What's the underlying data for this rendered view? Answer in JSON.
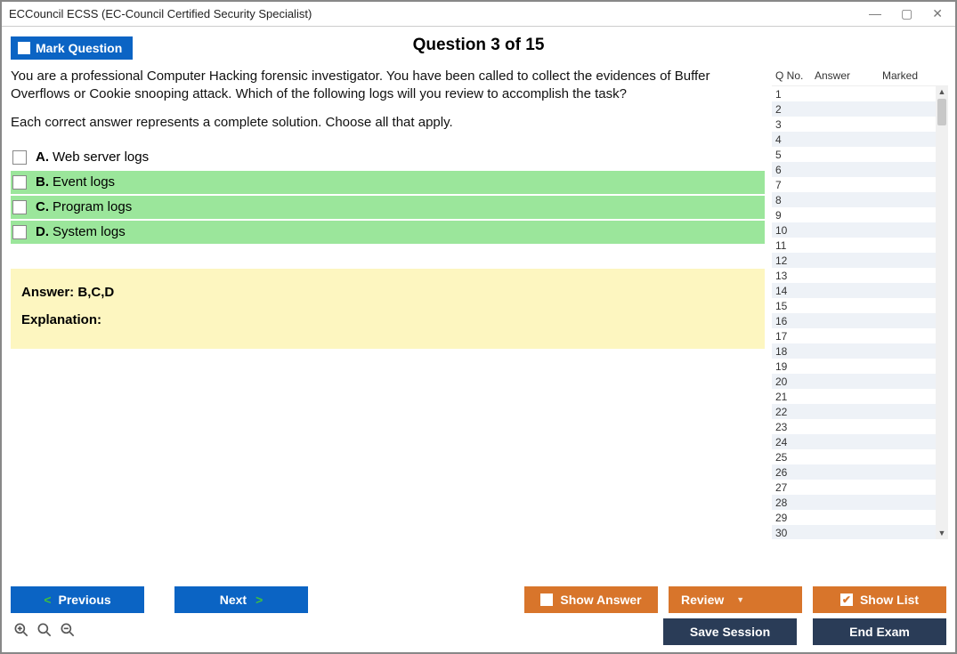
{
  "window": {
    "title": "ECCouncil ECSS (EC-Council Certified Security Specialist)"
  },
  "header": {
    "mark_label": "Mark Question",
    "question_heading": "Question 3 of 15"
  },
  "question": {
    "text": "You are a professional Computer Hacking forensic investigator. You have been called to collect the evidences of Buffer Overflows or Cookie snooping attack. Which of the following logs will you review to accomplish the task?",
    "instruction": "Each correct answer represents a complete solution. Choose all that apply.",
    "options": [
      {
        "letter": "A.",
        "text": "Web server logs",
        "highlighted": false
      },
      {
        "letter": "B.",
        "text": "Event logs",
        "highlighted": true
      },
      {
        "letter": "C.",
        "text": "Program logs",
        "highlighted": true
      },
      {
        "letter": "D.",
        "text": "System logs",
        "highlighted": true
      }
    ],
    "answer_label": "Answer: ",
    "answer_value": "B,C,D",
    "explanation_label": "Explanation:",
    "highlight_color": "#9be69b",
    "answer_box_color": "#fdf6c0"
  },
  "sidebar": {
    "columns": {
      "qno": "Q No.",
      "answer": "Answer",
      "marked": "Marked"
    },
    "row_count": 30,
    "even_row_color": "#eef2f7"
  },
  "buttons": {
    "previous": "Previous",
    "next": "Next",
    "show_answer": "Show Answer",
    "review": "Review",
    "show_list": "Show List",
    "save_session": "Save Session",
    "end_exam": "End Exam"
  },
  "colors": {
    "blue": "#0b64c4",
    "orange": "#d8752b",
    "dark": "#2a3c57",
    "arrow_green": "#3fbf3f"
  }
}
